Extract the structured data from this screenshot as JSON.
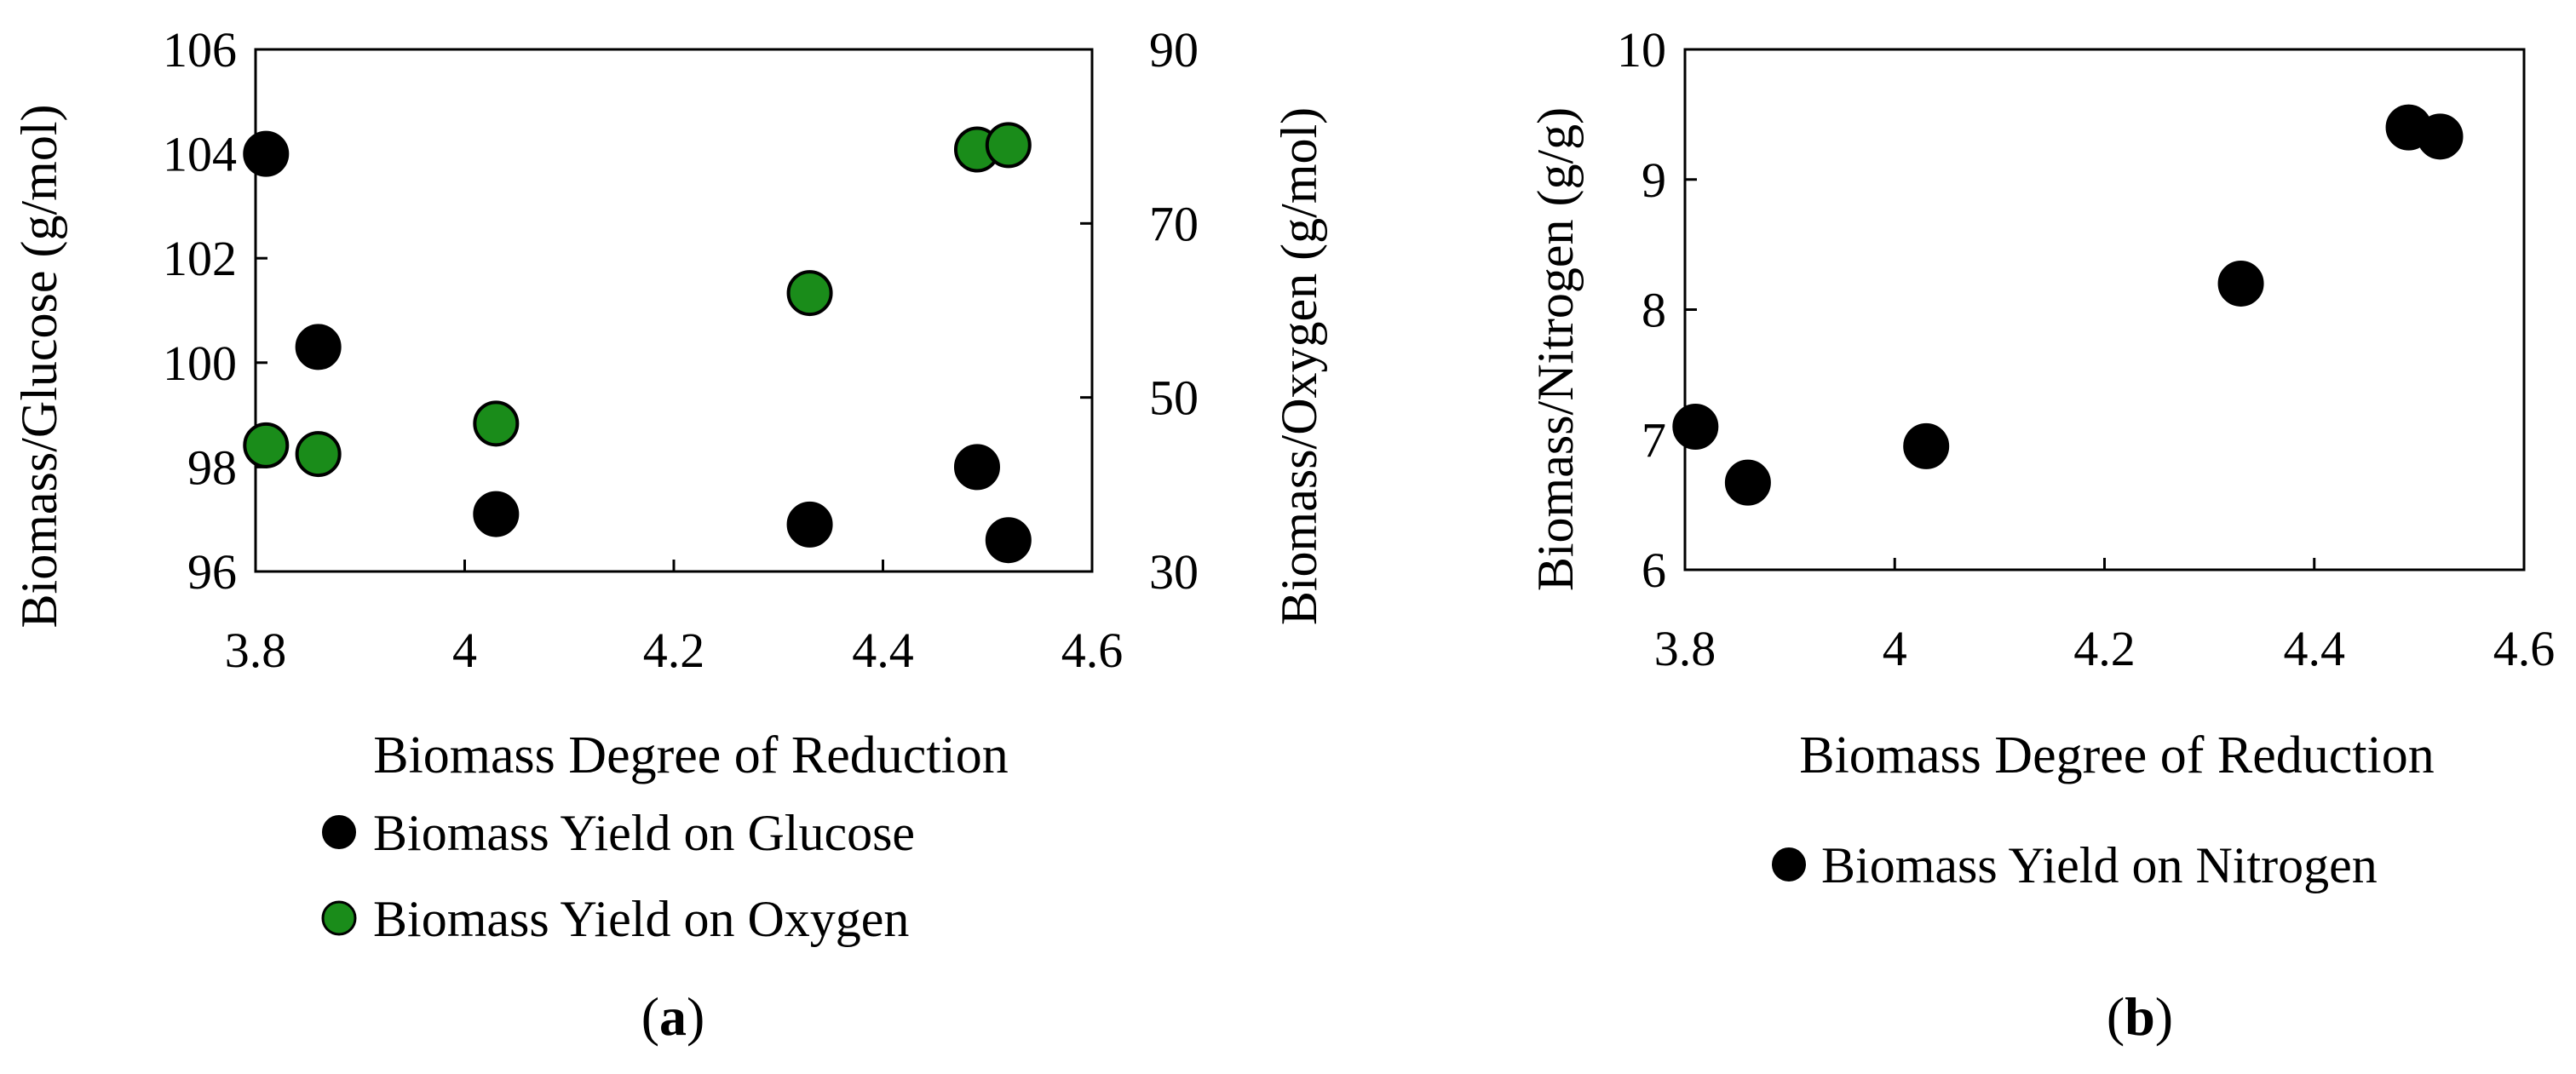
{
  "chart_data": [
    {
      "type": "scatter",
      "panel_label": "a",
      "xlabel": "Biomass Degree of Reduction",
      "ylabel": "Biomass/Glucose (g/mol)",
      "y2label": "Biomass/Oxygen (g/mol)",
      "xlim": [
        3.8,
        4.6
      ],
      "ylim": [
        96,
        106
      ],
      "y2lim": [
        30,
        90
      ],
      "xticks": [
        "3.8",
        "4",
        "4.2",
        "4.4",
        "4.6"
      ],
      "yticks": [
        "96",
        "98",
        "100",
        "102",
        "104",
        "106"
      ],
      "y2ticks": [
        "30",
        "50",
        "70",
        "90"
      ],
      "legend_position": "bottom",
      "series": [
        {
          "name": "Biomass Yield on Glucose",
          "color": "#000000",
          "axis": "left",
          "x": [
            3.81,
            3.86,
            4.03,
            4.33,
            4.49,
            4.52
          ],
          "y": [
            104.0,
            100.3,
            97.1,
            96.9,
            98.0,
            96.6
          ]
        },
        {
          "name": "Biomass Yield on Oxygen",
          "color": "#1a8c1a",
          "axis": "right",
          "x": [
            3.81,
            3.86,
            4.03,
            4.33,
            4.49,
            4.52
          ],
          "y": [
            44.5,
            43.5,
            47.0,
            62.0,
            78.5,
            79.0
          ]
        }
      ]
    },
    {
      "type": "scatter",
      "panel_label": "b",
      "xlabel": "Biomass Degree of Reduction",
      "ylabel": "Biomass/Nitrogen (g/g)",
      "xlim": [
        3.8,
        4.6
      ],
      "ylim": [
        6,
        10
      ],
      "xticks": [
        "3.8",
        "4",
        "4.2",
        "4.4",
        "4.6"
      ],
      "yticks": [
        "6",
        "7",
        "8",
        "9",
        "10"
      ],
      "legend_position": "bottom",
      "series": [
        {
          "name": "Biomass Yield on Nitrogen",
          "color": "#000000",
          "axis": "left",
          "x": [
            3.81,
            3.86,
            4.03,
            4.33,
            4.49,
            4.52
          ],
          "y": [
            7.1,
            6.67,
            6.95,
            8.2,
            9.4,
            9.33
          ]
        }
      ]
    }
  ]
}
